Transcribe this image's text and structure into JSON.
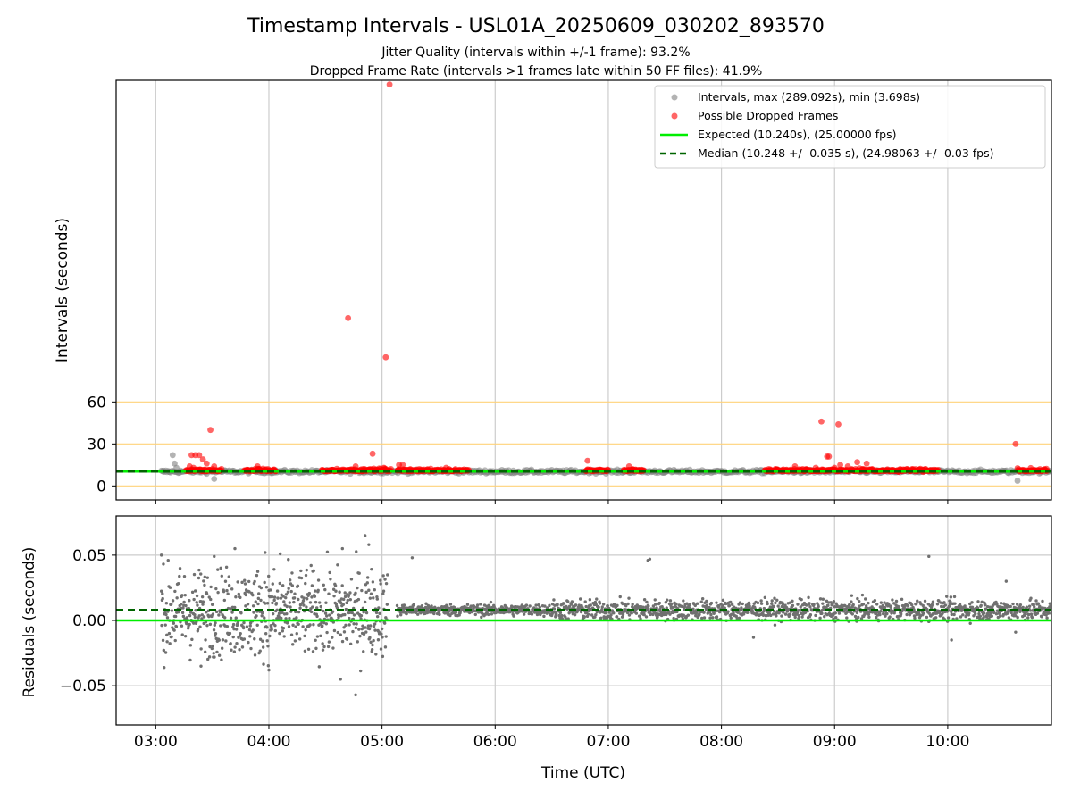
{
  "title": "Timestamp Intervals - USL01A_20250609_030202_893570",
  "subtitle_1": "Jitter Quality (intervals within +/-1 frame): 93.2%",
  "subtitle_2": "Dropped Frame Rate (intervals >1 frames late within 50 FF files): 41.9%",
  "colors": {
    "intervals": "#808080",
    "dropped": "#ff0000",
    "expected": "#00ee00",
    "median": "#006400",
    "guide_lines": "#ffd27a",
    "grid": "#cccccc",
    "residuals": "#707070"
  },
  "chart_data": [
    {
      "type": "scatter",
      "name": "intervals-panel",
      "ylabel": "Intervals (seconds)",
      "xlim": [
        "02:39",
        "10:55"
      ],
      "ylim": [
        -10,
        290
      ],
      "yticks": [
        0,
        30,
        60
      ],
      "ytick_labels": [
        "0",
        "30",
        "60"
      ],
      "horizontal_guides": [
        0,
        30,
        60
      ],
      "grid": true,
      "legend_position": "top-right",
      "legend": [
        "Intervals, max (289.092s), min (3.698s)",
        "Possible Dropped Frames",
        "Expected (10.240s), (25.00000 fps)",
        "Median (10.248 +/- 0.035 s), (24.98063 +/- 0.03 fps)"
      ],
      "expected_value": 10.24,
      "median_value": 10.248,
      "range_max": 289.092,
      "range_min": 3.698,
      "intervals_points": [
        [
          "03:04",
          10.2
        ],
        [
          "03:07",
          10.2
        ],
        [
          "03:09",
          22
        ],
        [
          "03:10",
          16
        ],
        [
          "03:11",
          13
        ],
        [
          "03:13",
          10.2
        ],
        [
          "03:24",
          10.2
        ],
        [
          "03:30",
          10.2
        ],
        [
          "03:31",
          5
        ]
      ],
      "intervals_band": [
        [
          "03:03",
          "10:55"
        ]
      ],
      "dropped_points": [
        [
          "03:19",
          22
        ],
        [
          "03:21",
          22
        ],
        [
          "03:23",
          22
        ],
        [
          "03:25",
          19
        ],
        [
          "03:27",
          16
        ],
        [
          "03:18",
          14
        ],
        [
          "03:20",
          13
        ],
        [
          "03:29",
          40
        ],
        [
          "03:30",
          12
        ],
        [
          "03:31",
          14
        ],
        [
          "03:54",
          14
        ],
        [
          "03:55",
          12
        ],
        [
          "04:42",
          120
        ],
        [
          "04:45",
          11
        ],
        [
          "04:46",
          14
        ],
        [
          "04:50",
          12
        ],
        [
          "04:55",
          23
        ],
        [
          "05:01",
          13
        ],
        [
          "05:02",
          92
        ],
        [
          "05:04",
          287
        ],
        [
          "05:09",
          15
        ],
        [
          "05:11",
          15
        ],
        [
          "05:15",
          12
        ],
        [
          "05:20",
          11
        ],
        [
          "05:34",
          13
        ],
        [
          "06:49",
          18
        ],
        [
          "07:11",
          14
        ],
        [
          "07:13",
          12
        ],
        [
          "08:25",
          12
        ],
        [
          "08:33",
          11
        ],
        [
          "08:37",
          11
        ],
        [
          "08:39",
          14
        ],
        [
          "08:45",
          12
        ],
        [
          "08:50",
          13
        ],
        [
          "08:53",
          46
        ],
        [
          "08:56",
          21
        ],
        [
          "08:57",
          21
        ],
        [
          "09:00",
          13
        ],
        [
          "09:02",
          44
        ],
        [
          "09:03",
          15
        ],
        [
          "09:07",
          14
        ],
        [
          "09:12",
          17
        ],
        [
          "09:15",
          12
        ],
        [
          "09:17",
          16
        ],
        [
          "09:20",
          12
        ],
        [
          "09:28",
          11
        ],
        [
          "09:34",
          10
        ],
        [
          "09:41",
          12
        ],
        [
          "09:43",
          12
        ],
        [
          "09:47",
          10
        ],
        [
          "09:51",
          11
        ],
        [
          "10:36",
          30
        ]
      ],
      "dropped_bands": [
        [
          "03:16",
          "03:35"
        ],
        [
          "03:47",
          "04:04"
        ],
        [
          "04:28",
          "05:05"
        ],
        [
          "05:08",
          "05:33"
        ],
        [
          "05:33",
          "05:46"
        ],
        [
          "06:48",
          "07:00"
        ],
        [
          "07:08",
          "07:19"
        ],
        [
          "08:23",
          "08:47"
        ],
        [
          "08:47",
          "09:28"
        ],
        [
          "09:28",
          "09:55"
        ],
        [
          "10:37",
          "10:53"
        ]
      ],
      "gray_low_point": [
        "10:37",
        3.7
      ]
    },
    {
      "type": "scatter",
      "name": "residuals-panel",
      "ylabel": "Residuals (seconds)",
      "xlabel": "Time (UTC)",
      "xlim": [
        "02:39",
        "10:55"
      ],
      "ylim": [
        -0.08,
        0.08
      ],
      "yticks": [
        -0.05,
        0.0,
        0.05
      ],
      "ytick_labels": [
        "−0.05",
        "0.00",
        "0.05"
      ],
      "xticks": [
        "03:00",
        "04:00",
        "05:00",
        "06:00",
        "07:00",
        "08:00",
        "09:00",
        "10:00"
      ],
      "grid": true,
      "expected_value": 0.0,
      "median_value": 0.008,
      "segments": [
        {
          "from": "03:03",
          "to": "05:03",
          "center": 0.006,
          "spread": 0.03
        },
        {
          "from": "05:08",
          "to": "06:30",
          "center": 0.008,
          "spread": 0.004
        },
        {
          "from": "06:30",
          "to": "10:55",
          "center": 0.008,
          "spread": 0.007
        }
      ],
      "outliers": [
        [
          "03:03",
          0.05
        ],
        [
          "03:31",
          0.049
        ],
        [
          "03:42",
          0.055
        ],
        [
          "03:58",
          0.052
        ],
        [
          "04:06",
          0.051
        ],
        [
          "04:39",
          0.055
        ],
        [
          "04:51",
          0.065
        ],
        [
          "04:53",
          0.058
        ],
        [
          "04:38",
          -0.045
        ],
        [
          "04:46",
          -0.057
        ],
        [
          "04:00",
          -0.038
        ],
        [
          "03:24",
          -0.035
        ],
        [
          "05:16",
          0.048
        ],
        [
          "07:21",
          0.046
        ],
        [
          "07:22",
          0.047
        ],
        [
          "08:17",
          -0.013
        ],
        [
          "09:50",
          0.049
        ],
        [
          "10:31",
          0.03
        ],
        [
          "10:36",
          -0.009
        ],
        [
          "10:02",
          -0.015
        ]
      ]
    }
  ]
}
